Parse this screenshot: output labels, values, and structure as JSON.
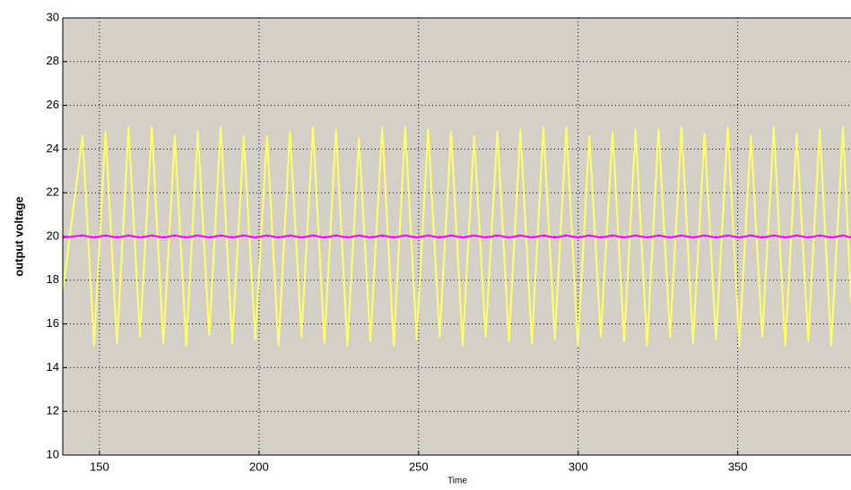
{
  "chart_data": {
    "type": "line",
    "x_label": "Time",
    "y_label": "output voltage",
    "x": [
      138.5,
      144.7,
      148.3,
      151.9,
      155.5,
      159.1,
      162.7,
      166.4,
      170.0,
      173.6,
      177.2,
      180.8,
      184.4,
      188.0,
      191.6,
      195.2,
      198.8,
      202.5,
      206.1,
      209.7,
      213.3,
      216.9,
      220.5,
      224.1,
      227.7,
      231.3,
      234.9,
      238.6,
      242.2,
      245.8,
      249.4,
      253.0,
      256.6,
      260.2,
      263.8,
      267.4,
      271.0,
      274.7,
      278.3,
      281.9,
      285.5,
      289.1,
      292.7,
      296.3,
      299.9,
      303.5,
      307.1,
      310.8,
      314.4,
      318.0,
      321.6,
      325.2,
      328.8,
      332.4,
      336.0,
      339.6,
      343.2,
      346.9,
      350.5,
      354.1,
      357.7,
      361.3,
      364.9,
      368.5,
      372.1,
      375.7,
      379.3,
      383.0,
      385.5
    ],
    "series": [
      {
        "color": "#ffff66",
        "values": [
          17.5,
          24.6,
          15.0,
          24.8,
          15.1,
          25.0,
          15.4,
          25.0,
          15.1,
          24.6,
          15.0,
          24.8,
          15.5,
          25.0,
          15.1,
          24.6,
          15.3,
          24.6,
          15.0,
          24.8,
          15.4,
          25.0,
          15.1,
          24.9,
          15.0,
          24.5,
          15.2,
          25.0,
          15.0,
          25.0,
          15.3,
          24.9,
          15.4,
          24.8,
          15.0,
          24.6,
          15.4,
          24.8,
          15.2,
          24.9,
          15.1,
          25.0,
          15.3,
          25.0,
          15.0,
          24.6,
          15.4,
          24.8,
          15.2,
          24.9,
          15.0,
          24.9,
          15.4,
          25.0,
          15.1,
          24.7,
          15.3,
          25.0,
          15.0,
          24.6,
          15.4,
          25.0,
          15.0,
          24.7,
          15.2,
          24.9,
          15.0,
          25.0,
          17.0
        ]
      },
      {
        "color": "#ff00ff",
        "values": [
          19.95,
          20.05,
          19.95,
          20.05,
          19.95,
          20.05,
          19.95,
          20.05,
          19.95,
          20.05,
          19.95,
          20.05,
          19.95,
          20.05,
          19.95,
          20.05,
          19.95,
          20.05,
          19.95,
          20.05,
          19.95,
          20.05,
          19.95,
          20.05,
          19.95,
          20.05,
          19.95,
          20.05,
          19.95,
          20.05,
          19.95,
          20.05,
          19.95,
          20.05,
          19.95,
          20.05,
          19.95,
          20.05,
          19.95,
          20.05,
          19.95,
          20.05,
          19.95,
          20.05,
          19.95,
          20.05,
          19.95,
          20.05,
          19.95,
          20.05,
          19.95,
          20.05,
          19.95,
          20.05,
          19.95,
          20.05,
          19.95,
          20.05,
          19.95,
          20.05,
          19.95,
          20.05,
          19.95,
          20.05,
          19.95,
          20.05,
          19.95,
          20.05,
          19.95
        ]
      }
    ],
    "xlim": [
      138.5,
      385.5
    ],
    "xticks": [
      150,
      200,
      250,
      300,
      350
    ],
    "ylim": [
      10,
      30
    ],
    "yticks": [
      10,
      12,
      14,
      16,
      18,
      20,
      22,
      24,
      26,
      28,
      30
    ],
    "grid": true,
    "background": "#d4d0c8"
  }
}
